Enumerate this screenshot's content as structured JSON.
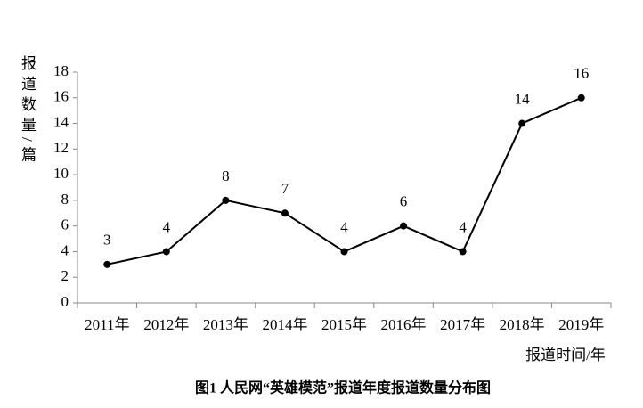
{
  "chart_data": {
    "type": "line",
    "caption": "图1 人民网“英雄模范”报道年度报道数量分布图",
    "y_label": "报道数量/篇",
    "x_label": "报道时间/年",
    "categories": [
      "2011年",
      "2012年",
      "2013年",
      "2014年",
      "2015年",
      "2016年",
      "2017年",
      "2018年",
      "2019年"
    ],
    "values": [
      3,
      4,
      8,
      7,
      4,
      6,
      4,
      14,
      16
    ],
    "color": "#000000",
    "ylim": [
      0,
      18
    ],
    "yticks": [
      0,
      2,
      4,
      6,
      8,
      10,
      12,
      14,
      16,
      18
    ],
    "grid": false
  }
}
